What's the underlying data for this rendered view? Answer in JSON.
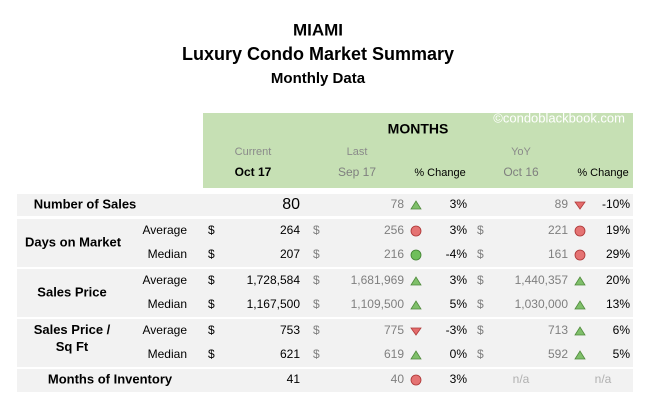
{
  "header": {
    "title": "MIAMI",
    "subtitle": "Luxury Condo Market Summary",
    "period": "Monthly Data"
  },
  "table": {
    "band_title": "MONTHS",
    "watermark": "©condoblackbook.com",
    "columns": {
      "current_caption": "Current",
      "current": "Oct 17",
      "last_caption": "Last",
      "last": "Sep 17",
      "last_change": "% Change",
      "yoy_caption": "YoY",
      "yoy": "Oct 16",
      "yoy_change": "% Change"
    },
    "groups": [
      {
        "label": [
          "Number of Sales"
        ],
        "rows": [
          {
            "current": {
              "value": "80"
            },
            "last": {
              "value": "78",
              "icon": "up",
              "change": "3%"
            },
            "yoy": {
              "value": "89",
              "icon": "down",
              "change": "-10%"
            }
          }
        ]
      },
      {
        "label": [
          "Days on Market"
        ],
        "rows": [
          {
            "sub": "Average",
            "current": {
              "unit": "$",
              "value": "264"
            },
            "last": {
              "unit": "$",
              "value": "256",
              "icon": "red",
              "change": "3%"
            },
            "yoy": {
              "unit": "$",
              "value": "221",
              "icon": "red",
              "change": "19%"
            }
          },
          {
            "sub": "Median",
            "current": {
              "unit": "$",
              "value": "207"
            },
            "last": {
              "unit": "$",
              "value": "216",
              "icon": "green",
              "change": "-4%"
            },
            "yoy": {
              "unit": "$",
              "value": "161",
              "icon": "red",
              "change": "29%"
            }
          }
        ]
      },
      {
        "label": [
          "Sales Price"
        ],
        "rows": [
          {
            "sub": "Average",
            "current": {
              "unit": "$",
              "value": "1,728,584"
            },
            "last": {
              "unit": "$",
              "value": "1,681,969",
              "icon": "up",
              "change": "3%"
            },
            "yoy": {
              "unit": "$",
              "value": "1,440,357",
              "icon": "up",
              "change": "20%"
            }
          },
          {
            "sub": "Median",
            "current": {
              "unit": "$",
              "value": "1,167,500"
            },
            "last": {
              "unit": "$",
              "value": "1,109,500",
              "icon": "up",
              "change": "5%"
            },
            "yoy": {
              "unit": "$",
              "value": "1,030,000",
              "icon": "up",
              "change": "13%"
            }
          }
        ]
      },
      {
        "label": [
          "Sales Price /",
          "Sq Ft"
        ],
        "rows": [
          {
            "sub": "Average",
            "current": {
              "unit": "$",
              "value": "753"
            },
            "last": {
              "unit": "$",
              "value": "775",
              "icon": "down",
              "change": "-3%"
            },
            "yoy": {
              "unit": "$",
              "value": "713",
              "icon": "up",
              "change": "6%"
            }
          },
          {
            "sub": "Median",
            "current": {
              "unit": "$",
              "value": "621"
            },
            "last": {
              "unit": "$",
              "value": "619",
              "icon": "up",
              "change": "0%"
            },
            "yoy": {
              "unit": "$",
              "value": "592",
              "icon": "up",
              "change": "5%"
            }
          }
        ]
      },
      {
        "label": [
          "Months of Inventory"
        ],
        "rows": [
          {
            "current": {
              "value": "41"
            },
            "last": {
              "value": "40",
              "icon": "red",
              "change": "3%"
            },
            "yoy": {
              "value": "n/a",
              "change": "n/a"
            }
          }
        ]
      }
    ]
  }
}
